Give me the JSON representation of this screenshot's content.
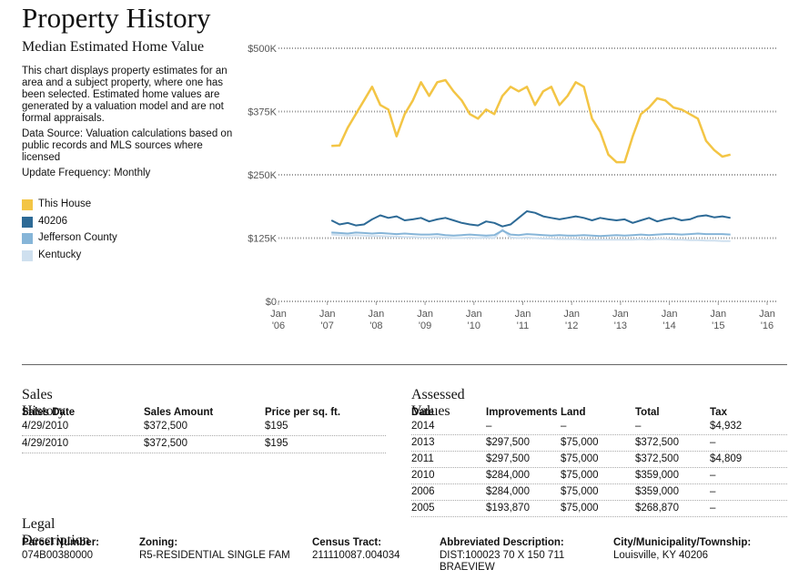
{
  "header": {
    "title": "Property History"
  },
  "chart_data": {
    "type": "line",
    "title": "Median Estimated Home Value",
    "description": [
      "This chart displays property estimates for an area and a subject property, where one has been selected. Estimated home values are generated by a valuation model and are not formal appraisals.",
      "Data Source: Valuation calculations based on public records and MLS sources where licensed",
      "Update Frequency: Monthly"
    ],
    "x": [
      "2007-02",
      "2007-04",
      "2007-06",
      "2007-08",
      "2007-10",
      "2007-12",
      "2008-02",
      "2008-04",
      "2008-06",
      "2008-08",
      "2008-10",
      "2008-12",
      "2009-02",
      "2009-04",
      "2009-06",
      "2009-08",
      "2009-10",
      "2009-12",
      "2010-02",
      "2010-04",
      "2010-06",
      "2010-08",
      "2010-10",
      "2010-12",
      "2011-02",
      "2011-04",
      "2011-06",
      "2011-08",
      "2011-10",
      "2011-12",
      "2012-02",
      "2012-04",
      "2012-06",
      "2012-08",
      "2012-10",
      "2012-12",
      "2013-02",
      "2013-04",
      "2013-06",
      "2013-08",
      "2013-10",
      "2013-12",
      "2014-02",
      "2014-04",
      "2014-06",
      "2014-08",
      "2014-10",
      "2014-12",
      "2015-02",
      "2015-04"
    ],
    "series": [
      {
        "name": "This House",
        "color": "#f3c545",
        "values": [
          307,
          308,
          343,
          370,
          397,
          424,
          388,
          379,
          326,
          370,
          397,
          433,
          406,
          433,
          437,
          415,
          397,
          370,
          361,
          379,
          370,
          406,
          424,
          415,
          424,
          388,
          415,
          424,
          388,
          406,
          433,
          424,
          361,
          335,
          290,
          275,
          275,
          326,
          370,
          383,
          401,
          397,
          383,
          379,
          370,
          361,
          317,
          299,
          286,
          290
        ]
      },
      {
        "name": "40206",
        "color": "#2d6a96",
        "values": [
          160,
          152,
          155,
          150,
          152,
          162,
          170,
          165,
          168,
          160,
          162,
          165,
          158,
          162,
          165,
          160,
          155,
          152,
          150,
          158,
          155,
          148,
          152,
          165,
          178,
          175,
          168,
          165,
          162,
          165,
          168,
          165,
          160,
          165,
          162,
          160,
          162,
          155,
          160,
          165,
          158,
          162,
          165,
          160,
          162,
          168,
          170,
          166,
          168,
          165
        ]
      },
      {
        "name": "Jefferson County",
        "color": "#86b5d8",
        "values": [
          136,
          135,
          134,
          136,
          135,
          134,
          135,
          134,
          133,
          134,
          133,
          132,
          132,
          133,
          131,
          130,
          131,
          132,
          131,
          130,
          131,
          140,
          132,
          131,
          133,
          132,
          131,
          130,
          131,
          130,
          130,
          131,
          130,
          129,
          130,
          131,
          130,
          131,
          132,
          131,
          132,
          133,
          133,
          132,
          133,
          134,
          133,
          133,
          133,
          132
        ]
      },
      {
        "name": "Kentucky",
        "color": "#cfe0ef",
        "values": [
          132,
          131,
          130,
          131,
          130,
          129,
          129,
          128,
          128,
          127,
          127,
          126,
          126,
          127,
          126,
          125,
          125,
          126,
          125,
          126,
          125,
          142,
          126,
          125,
          126,
          125,
          124,
          124,
          123,
          123,
          123,
          122,
          122,
          122,
          122,
          122,
          122,
          122,
          123,
          122,
          123,
          123,
          122,
          122,
          121,
          121,
          120,
          120,
          119,
          119
        ]
      }
    ],
    "xlim": [
      "2006-01",
      "2016-01"
    ],
    "xticks": [
      {
        "value": "2006-01",
        "label": "Jan '06"
      },
      {
        "value": "2007-01",
        "label": "Jan '07"
      },
      {
        "value": "2008-01",
        "label": "Jan '08"
      },
      {
        "value": "2009-01",
        "label": "Jan '09"
      },
      {
        "value": "2010-01",
        "label": "Jan '10"
      },
      {
        "value": "2011-01",
        "label": "Jan '11"
      },
      {
        "value": "2012-01",
        "label": "Jan '12"
      },
      {
        "value": "2013-01",
        "label": "Jan '13"
      },
      {
        "value": "2014-01",
        "label": "Jan '14"
      },
      {
        "value": "2015-01",
        "label": "Jan '15"
      },
      {
        "value": "2016-01",
        "label": "Jan '16"
      }
    ],
    "ylim": [
      0,
      500
    ],
    "yticks": [
      {
        "value": 0,
        "label": "$0"
      },
      {
        "value": 125,
        "label": "$125K"
      },
      {
        "value": 250,
        "label": "$250K"
      },
      {
        "value": 375,
        "label": "$375K"
      },
      {
        "value": 500,
        "label": "$500K"
      }
    ],
    "grid": true
  },
  "sales_history": {
    "title": "Sales History",
    "columns": [
      "Sales Date",
      "Sales Amount",
      "Price per sq. ft."
    ],
    "rows": [
      [
        "4/29/2010",
        "$372,500",
        "$195"
      ],
      [
        "4/29/2010",
        "$372,500",
        "$195"
      ]
    ]
  },
  "assessed_values": {
    "title": "Assessed Values",
    "columns": [
      "Date",
      "Improvements",
      "Land",
      "Total",
      "Tax"
    ],
    "rows": [
      [
        "2014",
        "–",
        "–",
        "–",
        "$4,932"
      ],
      [
        "2013",
        "$297,500",
        "$75,000",
        "$372,500",
        "–"
      ],
      [
        "2011",
        "$297,500",
        "$75,000",
        "$372,500",
        "$4,809"
      ],
      [
        "2010",
        "$284,000",
        "$75,000",
        "$359,000",
        "–"
      ],
      [
        "2006",
        "$284,000",
        "$75,000",
        "$359,000",
        "–"
      ],
      [
        "2005",
        "$193,870",
        "$75,000",
        "$268,870",
        "–"
      ]
    ]
  },
  "legal_description": {
    "title": "Legal Description",
    "fields": [
      {
        "label": "Parcel Number:",
        "value": "074B00380000"
      },
      {
        "label": "Zoning:",
        "value": "R5-RESIDENTIAL SINGLE FAM"
      },
      {
        "label": "Census Tract:",
        "value": "211110087.004034"
      },
      {
        "label": "Abbreviated Description:",
        "value": "DIST:100023 70 X 150 711 BRAEVIEW"
      },
      {
        "label": "City/Municipality/Township:",
        "value": "Louisville, KY 40206"
      }
    ]
  }
}
